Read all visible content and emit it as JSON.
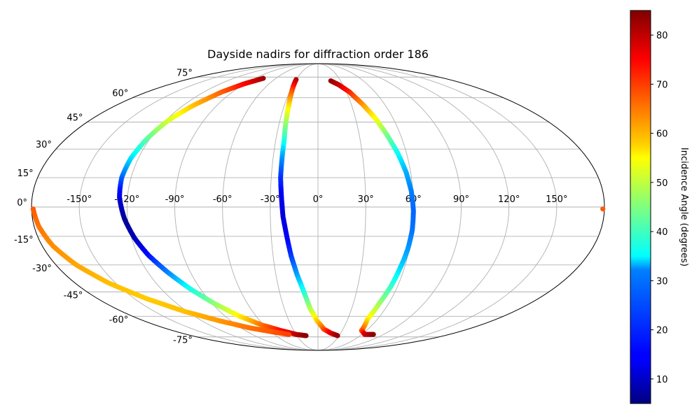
{
  "chart_data": {
    "type": "scatter",
    "projection": "mollweide",
    "title": "Dayside nadirs for diffraction order 186",
    "grid": true,
    "lon_ticks": [
      "-150°",
      "-120°",
      "-90°",
      "-60°",
      "-30°",
      "0°",
      "30°",
      "60°",
      "90°",
      "120°",
      "150°"
    ],
    "lat_ticks": [
      "75°",
      "60°",
      "45°",
      "30°",
      "15°",
      "0°",
      "-15°",
      "-30°",
      "-45°",
      "-60°",
      "-75°"
    ],
    "colorbar": {
      "label": "Incidence Angle (degrees)",
      "colormap": "jet",
      "range": [
        5,
        85
      ],
      "ticks": [
        "10",
        "20",
        "30",
        "40",
        "50",
        "60",
        "70",
        "80"
      ]
    },
    "series": [
      {
        "points": [
          {
            "lon": -78,
            "lat": 74,
            "c": 83
          },
          {
            "lon": -90,
            "lat": 70,
            "c": 76
          },
          {
            "lon": -101,
            "lat": 64,
            "c": 68
          },
          {
            "lon": -111,
            "lat": 55,
            "c": 60
          },
          {
            "lon": -118,
            "lat": 46,
            "c": 52
          },
          {
            "lon": -122,
            "lat": 36,
            "c": 43
          },
          {
            "lon": -125,
            "lat": 25,
            "c": 33
          },
          {
            "lon": -126,
            "lat": 15,
            "c": 23
          },
          {
            "lon": -125,
            "lat": 5,
            "c": 13
          },
          {
            "lon": -122,
            "lat": -6,
            "c": 7
          },
          {
            "lon": -118,
            "lat": -16,
            "c": 9
          },
          {
            "lon": -113,
            "lat": -25,
            "c": 16
          },
          {
            "lon": -106,
            "lat": -34,
            "c": 25
          },
          {
            "lon": -98,
            "lat": -43,
            "c": 36
          },
          {
            "lon": -88,
            "lat": -52,
            "c": 46
          },
          {
            "lon": -76,
            "lat": -60,
            "c": 56
          },
          {
            "lon": -62,
            "lat": -66,
            "c": 66
          },
          {
            "lon": -46,
            "lat": -70,
            "c": 74
          },
          {
            "lon": -30,
            "lat": -73,
            "c": 80
          },
          {
            "lon": -17,
            "lat": -74,
            "c": 84
          }
        ]
      },
      {
        "points": [
          {
            "lon": -30,
            "lat": 73,
            "c": 82
          },
          {
            "lon": -28,
            "lat": 65,
            "c": 70
          },
          {
            "lon": -26,
            "lat": 55,
            "c": 58
          },
          {
            "lon": -25,
            "lat": 45,
            "c": 48
          },
          {
            "lon": -24,
            "lat": 35,
            "c": 38
          },
          {
            "lon": -24,
            "lat": 25,
            "c": 27
          },
          {
            "lon": -24,
            "lat": 15,
            "c": 19
          },
          {
            "lon": -23,
            "lat": 5,
            "c": 14
          },
          {
            "lon": -22,
            "lat": -5,
            "c": 12
          },
          {
            "lon": -20,
            "lat": -15,
            "c": 14
          },
          {
            "lon": -18,
            "lat": -25,
            "c": 19
          },
          {
            "lon": -15,
            "lat": -35,
            "c": 27
          },
          {
            "lon": -11,
            "lat": -45,
            "c": 37
          },
          {
            "lon": -7,
            "lat": -55,
            "c": 48
          },
          {
            "lon": -1,
            "lat": -63,
            "c": 58
          },
          {
            "lon": 7,
            "lat": -69,
            "c": 68
          },
          {
            "lon": 17,
            "lat": -72,
            "c": 77
          },
          {
            "lon": 28,
            "lat": -74,
            "c": 83
          }
        ]
      },
      {
        "points": [
          {
            "lon": 17,
            "lat": 72,
            "c": 84
          },
          {
            "lon": 25,
            "lat": 69,
            "c": 80
          },
          {
            "lon": 33,
            "lat": 64,
            "c": 73
          },
          {
            "lon": 40,
            "lat": 56,
            "c": 64
          },
          {
            "lon": 46,
            "lat": 47,
            "c": 55
          },
          {
            "lon": 50,
            "lat": 38,
            "c": 45
          },
          {
            "lon": 54,
            "lat": 28,
            "c": 36
          },
          {
            "lon": 57,
            "lat": 18,
            "c": 29
          },
          {
            "lon": 59,
            "lat": 8,
            "c": 25
          },
          {
            "lon": 60,
            "lat": -2,
            "c": 23
          },
          {
            "lon": 60,
            "lat": -12,
            "c": 24
          },
          {
            "lon": 59,
            "lat": -22,
            "c": 27
          },
          {
            "lon": 57,
            "lat": -32,
            "c": 32
          },
          {
            "lon": 55,
            "lat": -42,
            "c": 39
          },
          {
            "lon": 52,
            "lat": -52,
            "c": 47
          },
          {
            "lon": 50,
            "lat": -62,
            "c": 56
          },
          {
            "lon": 54,
            "lat": -70,
            "c": 68
          },
          {
            "lon": 64,
            "lat": -73,
            "c": 78
          },
          {
            "lon": 76,
            "lat": -73,
            "c": 84
          }
        ]
      },
      {
        "points": [
          {
            "lon": -179,
            "lat": -1,
            "c": 68
          },
          {
            "lon": -177,
            "lat": -10,
            "c": 66
          },
          {
            "lon": -173,
            "lat": -20,
            "c": 64
          },
          {
            "lon": -166,
            "lat": -30,
            "c": 62
          },
          {
            "lon": -155,
            "lat": -40,
            "c": 60
          },
          {
            "lon": -140,
            "lat": -49,
            "c": 59
          },
          {
            "lon": -122,
            "lat": -57,
            "c": 60
          },
          {
            "lon": -102,
            "lat": -63,
            "c": 63
          },
          {
            "lon": -80,
            "lat": -68,
            "c": 66
          },
          {
            "lon": -58,
            "lat": -71,
            "c": 68
          },
          {
            "lon": -40,
            "lat": -73,
            "c": 70
          }
        ]
      },
      {
        "points": [
          {
            "lon": 179,
            "lat": -1,
            "c": 68
          }
        ]
      }
    ]
  }
}
